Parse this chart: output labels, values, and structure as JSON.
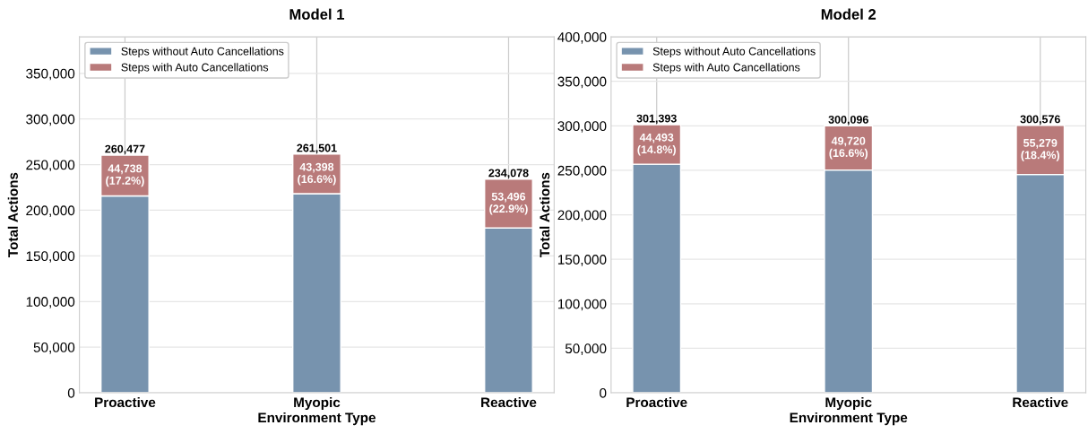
{
  "chart_data": [
    {
      "type": "bar",
      "title": "Model 1",
      "xlabel": "Environment Type",
      "ylabel": "Total Actions",
      "categories": [
        "Proactive",
        "Myopic",
        "Reactive"
      ],
      "stacked": true,
      "series": [
        {
          "name": "Steps without Auto Cancellations",
          "color": "#7793ae",
          "values": [
            215739,
            218103,
            180582
          ]
        },
        {
          "name": "Steps with Auto Cancellations",
          "color": "#b97a7a",
          "values": [
            44738,
            43398,
            53496
          ],
          "value_labels": [
            "44,738\n(17.2%)",
            "43,398\n(16.6%)",
            "53,496\n(22.9%)"
          ]
        }
      ],
      "totals": [
        "260,477",
        "261,501",
        "234,078"
      ],
      "ylim": [
        0,
        390000
      ],
      "yticks": [
        {
          "value": 0,
          "label": "0"
        },
        {
          "value": 50000,
          "label": "50,000"
        },
        {
          "value": 100000,
          "label": "100,000"
        },
        {
          "value": 150000,
          "label": "150,000"
        },
        {
          "value": 200000,
          "label": "200,000"
        },
        {
          "value": 250000,
          "label": "250,000"
        },
        {
          "value": 300000,
          "label": "300,000"
        },
        {
          "value": 350000,
          "label": "350,000"
        }
      ],
      "grid": true,
      "legend": "top left"
    },
    {
      "type": "bar",
      "title": "Model 2",
      "xlabel": "Environment Type",
      "ylabel": "Total Actions",
      "categories": [
        "Proactive",
        "Myopic",
        "Reactive"
      ],
      "stacked": true,
      "series": [
        {
          "name": "Steps without Auto Cancellations",
          "color": "#7793ae",
          "values": [
            256900,
            250376,
            245297
          ]
        },
        {
          "name": "Steps with Auto Cancellations",
          "color": "#b97a7a",
          "values": [
            44493,
            49720,
            55279
          ],
          "value_labels": [
            "44,493\n(14.8%)",
            "49,720\n(16.6%)",
            "55,279\n(18.4%)"
          ]
        }
      ],
      "totals": [
        "301,393",
        "300,096",
        "300,576"
      ],
      "ylim": [
        0,
        400000
      ],
      "yticks": [
        {
          "value": 0,
          "label": "0"
        },
        {
          "value": 50000,
          "label": "50,000"
        },
        {
          "value": 100000,
          "label": "100,000"
        },
        {
          "value": 150000,
          "label": "150,000"
        },
        {
          "value": 200000,
          "label": "200,000"
        },
        {
          "value": 250000,
          "label": "250,000"
        },
        {
          "value": 300000,
          "label": "300,000"
        },
        {
          "value": 350000,
          "label": "350,000"
        },
        {
          "value": 400000,
          "label": "400,000"
        }
      ],
      "grid": true,
      "legend": "top left"
    }
  ]
}
